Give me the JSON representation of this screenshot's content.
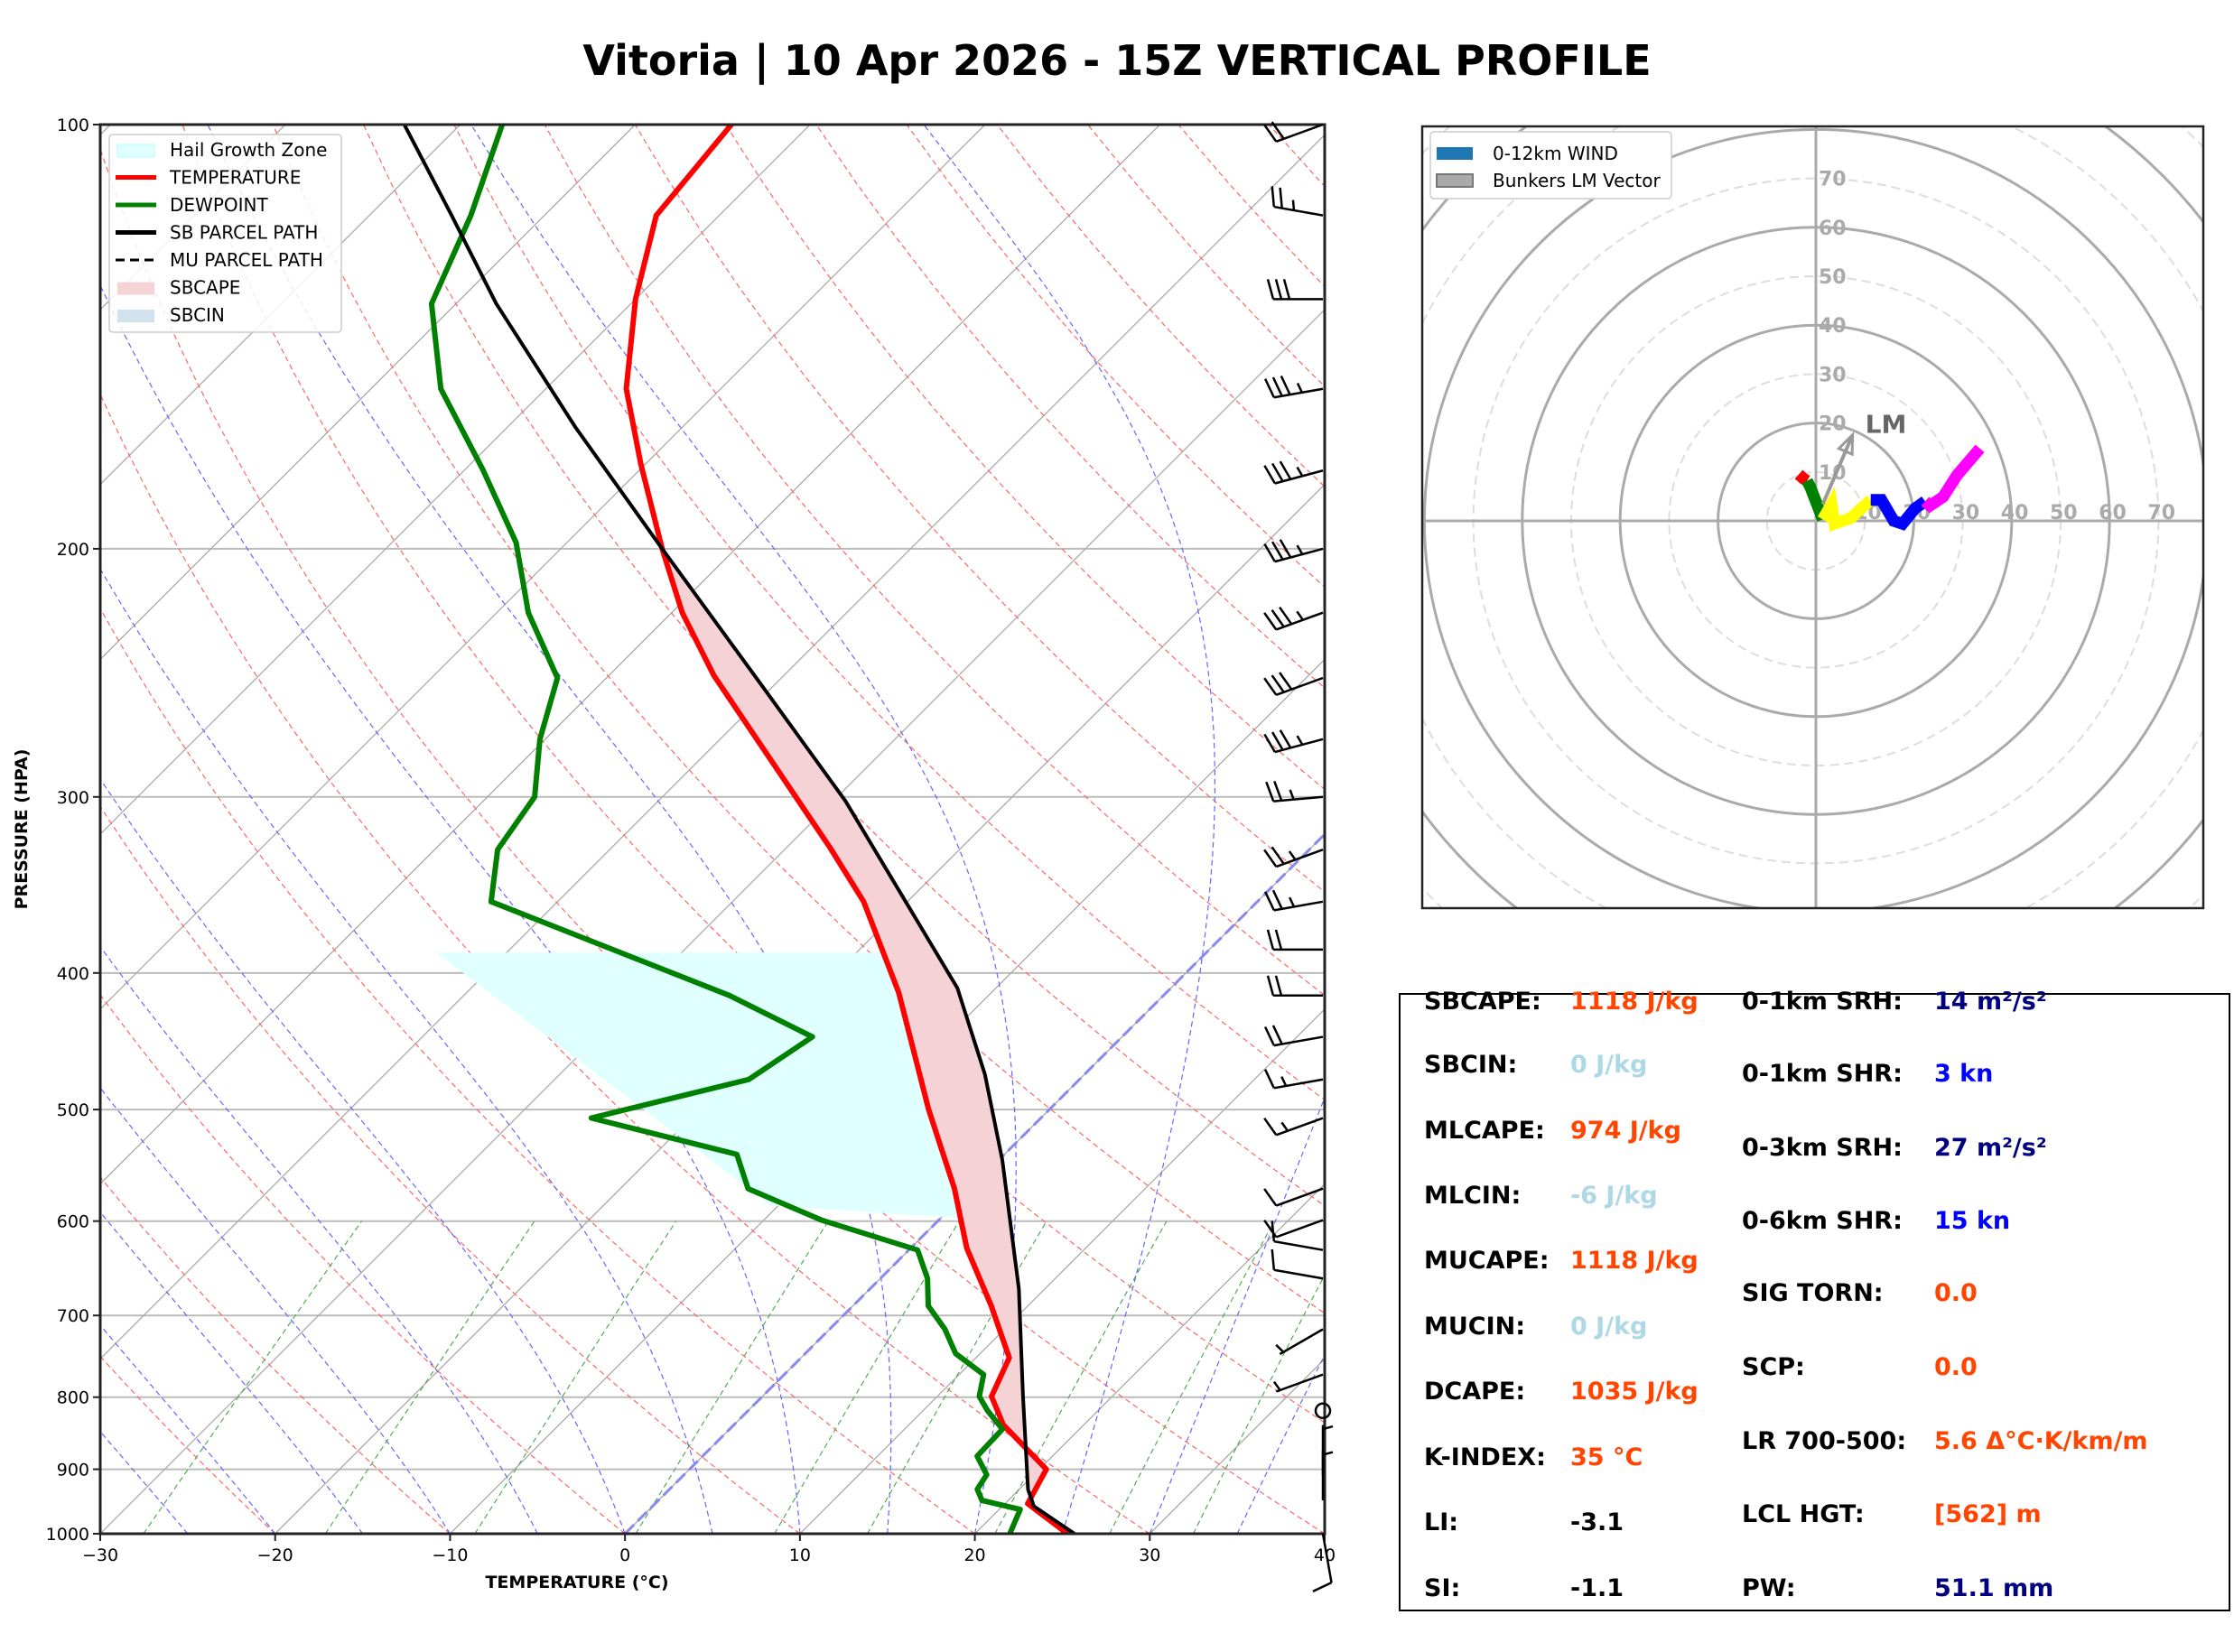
{
  "title": "Vitoria | 10 Apr 2026 - 15Z VERTICAL PROFILE",
  "chart_data": [
    {
      "type": "line",
      "name": "skew-T log-P diagram",
      "xlabel": "TEMPERATURE (°C)",
      "ylabel": "PRESSURE (HPA)",
      "xlim": [
        -30,
        40
      ],
      "ylim": [
        1000,
        100
      ],
      "x_ticks": [
        "−30",
        "−20",
        "−10",
        "0",
        "10",
        "20",
        "30",
        "40"
      ],
      "x_tick_values": [
        -30,
        -20,
        -10,
        0,
        10,
        20,
        30,
        40
      ],
      "y_ticks": [
        "100",
        "200",
        "300",
        "400",
        "500",
        "600",
        "700",
        "800",
        "900",
        "1000"
      ],
      "y_tick_values": [
        100,
        200,
        300,
        400,
        500,
        600,
        700,
        800,
        900,
        1000
      ],
      "grid": true,
      "legend_position": "top-left",
      "legend": [
        {
          "label": "Hail Growth Zone",
          "kind": "patch",
          "color": "#e0ffff"
        },
        {
          "label": "TEMPERATURE",
          "kind": "line",
          "color": "#ff0000"
        },
        {
          "label": "DEWPOINT",
          "kind": "line",
          "color": "#008000"
        },
        {
          "label": "SB PARCEL PATH",
          "kind": "line",
          "color": "#000000"
        },
        {
          "label": "MU PARCEL PATH",
          "kind": "dashed",
          "color": "#000000"
        },
        {
          "label": "SBCAPE",
          "kind": "patch",
          "color": "#f4d2d5"
        },
        {
          "label": "SBCIN",
          "kind": "patch",
          "color": "#cfe2ee"
        }
      ],
      "series": [
        {
          "name": "TEMPERATURE",
          "color": "#ff0000",
          "p": [
            1000,
            952,
            900,
            837,
            799,
            750,
            689,
            627,
            569,
            500,
            413,
            356,
            326,
            246,
            222,
            200,
            174,
            154,
            133,
            116,
            100
          ],
          "t": [
            25.3,
            21.3,
            20.4,
            15.4,
            13.1,
            11.9,
            7.9,
            3.2,
            -0.9,
            -6.9,
            -15.3,
            -22.5,
            -27.5,
            -44.0,
            -49.4,
            -54.2,
            -60.3,
            -65.4,
            -70.0,
            -73.6,
            -74.5
          ]
        },
        {
          "name": "DEWPOINT",
          "color": "#008000",
          "p": [
            1000,
            961,
            947,
            930,
            908,
            881,
            843,
            818,
            799,
            771,
            745,
            716,
            689,
            659,
            629,
            599,
            569,
            538,
            507,
            476,
            444,
            415,
            356,
            327,
            300,
            273,
            247,
            222,
            198,
            176,
            154,
            134,
            116,
            100
          ],
          "t": [
            22.0,
            21.2,
            18.5,
            17.6,
            17.3,
            15.7,
            15.6,
            13.7,
            12.4,
            11.4,
            8.6,
            6.6,
            4.3,
            2.7,
            0.5,
            -6.7,
            -12.7,
            -15.3,
            -25.7,
            -18.9,
            -17.7,
            -24.8,
            -43.8,
            -46.4,
            -47.3,
            -50.3,
            -52.8,
            -58.2,
            -62.9,
            -68.9,
            -76.0,
            -81.4,
            -84.2,
            -87.6
          ]
        },
        {
          "name": "SB PARCEL PATH",
          "color": "#000000",
          "p": [
            1000,
            956,
            930,
            799,
            670,
            543,
            472,
            410,
            356,
            302,
            250,
            200,
            164,
            134,
            116,
            100
          ],
          "t": [
            25.7,
            21.8,
            20.5,
            14.9,
            8.5,
            0.2,
            -5.7,
            -12.2,
            -20.1,
            -29.3,
            -40.7,
            -54.2,
            -66.1,
            -77.7,
            -85.3,
            -93.2
          ]
        }
      ],
      "hail_growth_zone": {
        "p_top": 387,
        "p_bottom": 597,
        "t_left_top": -44,
        "t_left_bottom": -9
      },
      "sbcape_region": {
        "p_bottom": 930,
        "p_top": 200
      },
      "freezing_level_isotherm_c": 0,
      "wind_barbs": [
        {
          "p": 100,
          "dir": 250,
          "kt": 20
        },
        {
          "p": 116,
          "dir": 280,
          "kt": 25
        },
        {
          "p": 133,
          "dir": 270,
          "kt": 30
        },
        {
          "p": 154,
          "dir": 260,
          "kt": 35
        },
        {
          "p": 176,
          "dir": 255,
          "kt": 35
        },
        {
          "p": 200,
          "dir": 255,
          "kt": 35
        },
        {
          "p": 222,
          "dir": 250,
          "kt": 35
        },
        {
          "p": 247,
          "dir": 250,
          "kt": 30
        },
        {
          "p": 273,
          "dir": 255,
          "kt": 35
        },
        {
          "p": 300,
          "dir": 265,
          "kt": 25
        },
        {
          "p": 327,
          "dir": 250,
          "kt": 25
        },
        {
          "p": 356,
          "dir": 260,
          "kt": 25
        },
        {
          "p": 385,
          "dir": 270,
          "kt": 20
        },
        {
          "p": 415,
          "dir": 270,
          "kt": 20
        },
        {
          "p": 444,
          "dir": 260,
          "kt": 20
        },
        {
          "p": 476,
          "dir": 260,
          "kt": 15
        },
        {
          "p": 507,
          "dir": 250,
          "kt": 15
        },
        {
          "p": 569,
          "dir": 250,
          "kt": 10
        },
        {
          "p": 599,
          "dir": 250,
          "kt": 10
        },
        {
          "p": 629,
          "dir": 280,
          "kt": 10
        },
        {
          "p": 659,
          "dir": 280,
          "kt": 10
        },
        {
          "p": 716,
          "dir": 240,
          "kt": 5
        },
        {
          "p": 771,
          "dir": 250,
          "kt": 5
        },
        {
          "p": 818,
          "dir": 0,
          "kt": 0
        },
        {
          "p": 908,
          "dir": 0,
          "kt": 5
        },
        {
          "p": 947,
          "dir": 0,
          "kt": 5
        },
        {
          "p": 1000,
          "dir": 170,
          "kt": 10
        }
      ]
    },
    {
      "type": "line",
      "name": "hodograph",
      "rings_kt": [
        10,
        20,
        30,
        40,
        50,
        60,
        70
      ],
      "ring_labels": [
        "10",
        "20",
        "30",
        "40",
        "50",
        "60",
        "70"
      ],
      "xlim": [
        -80,
        80
      ],
      "ylim": [
        -80,
        80
      ],
      "legend_position": "top-left",
      "legend": [
        {
          "label": "0-12km WIND",
          "color": "#1f77b4"
        },
        {
          "label": "Bunkers LM Vector",
          "color": "#aaaaaa"
        }
      ],
      "segments": [
        {
          "color": "#ff0000",
          "u": [
            -3.5,
            -2.5,
            -1.8
          ],
          "v": [
            9.5,
            8.6,
            8.2
          ]
        },
        {
          "color": "#008000",
          "u": [
            -1.8,
            -1.1,
            0.1,
            1.4
          ],
          "v": [
            8.2,
            6.8,
            3.7,
            0.3
          ]
        },
        {
          "color": "#ffff00",
          "u": [
            1.4,
            3.2,
            3.8,
            7.2,
            11.2
          ],
          "v": [
            0.3,
            3.4,
            -0.6,
            0.6,
            4.3
          ]
        },
        {
          "color": "#0000ff",
          "u": [
            11.2,
            13.4,
            15.9,
            17.7,
            20.2,
            22.3
          ],
          "v": [
            4.3,
            4.3,
            0.0,
            -0.6,
            2.5,
            4.0
          ]
        },
        {
          "color": "#ff00ff",
          "u": [
            22.3,
            23.3,
            26.0,
            28.8,
            33.5
          ],
          "v": [
            4.0,
            3.1,
            4.9,
            9.3,
            14.8
          ]
        }
      ],
      "lm_vector": {
        "label": "LM",
        "u0": 1.4,
        "v0": 3.4,
        "u": 7.5,
        "v": 17.6,
        "color": "#999999"
      }
    }
  ],
  "stats": {
    "left": [
      {
        "label": "SBCAPE:",
        "value": "1118 J/kg",
        "color": "#ff4500"
      },
      {
        "label": "SBCIN:",
        "value": "0 J/kg",
        "color": "#add8e6"
      },
      {
        "label": "MLCAPE:",
        "value": "974 J/kg",
        "color": "#ff4500"
      },
      {
        "label": "MLCIN:",
        "value": "-6 J/kg",
        "color": "#add8e6"
      },
      {
        "label": "MUCAPE:",
        "value": "1118 J/kg",
        "color": "#ff4500"
      },
      {
        "label": "MUCIN:",
        "value": "0 J/kg",
        "color": "#add8e6"
      },
      {
        "label": "DCAPE:",
        "value": "1035 J/kg",
        "color": "#ff4500"
      },
      {
        "label": "K-INDEX:",
        "value": "35 °C",
        "color": "#ff4500"
      },
      {
        "label": "LI:",
        "value": "-3.1",
        "color": "#000000"
      },
      {
        "label": "SI:",
        "value": "-1.1",
        "color": "#000000"
      }
    ],
    "right": [
      {
        "label": "0-1km SRH:",
        "value": "14 m²/s²",
        "color": "#000080"
      },
      {
        "label": "0-1km SHR:",
        "value": "3 kn",
        "color": "#0000ff"
      },
      {
        "label": "0-3km SRH:",
        "value": "27 m²/s²",
        "color": "#000080"
      },
      {
        "label": "0-6km SHR:",
        "value": "15 kn",
        "color": "#0000ff"
      },
      {
        "label": "SIG TORN:",
        "value": "0.0",
        "color": "#ff4500"
      },
      {
        "label": "SCP:",
        "value": "0.0",
        "color": "#ff4500"
      },
      {
        "label": "LR 700-500:",
        "value": "5.6 Δ°C·K/km/m",
        "color": "#ff4500"
      },
      {
        "label": "LCL HGT:",
        "value": "[562] m",
        "color": "#ff4500"
      },
      {
        "label": "PW:",
        "value": "51.1 mm",
        "color": "#000080"
      }
    ]
  }
}
